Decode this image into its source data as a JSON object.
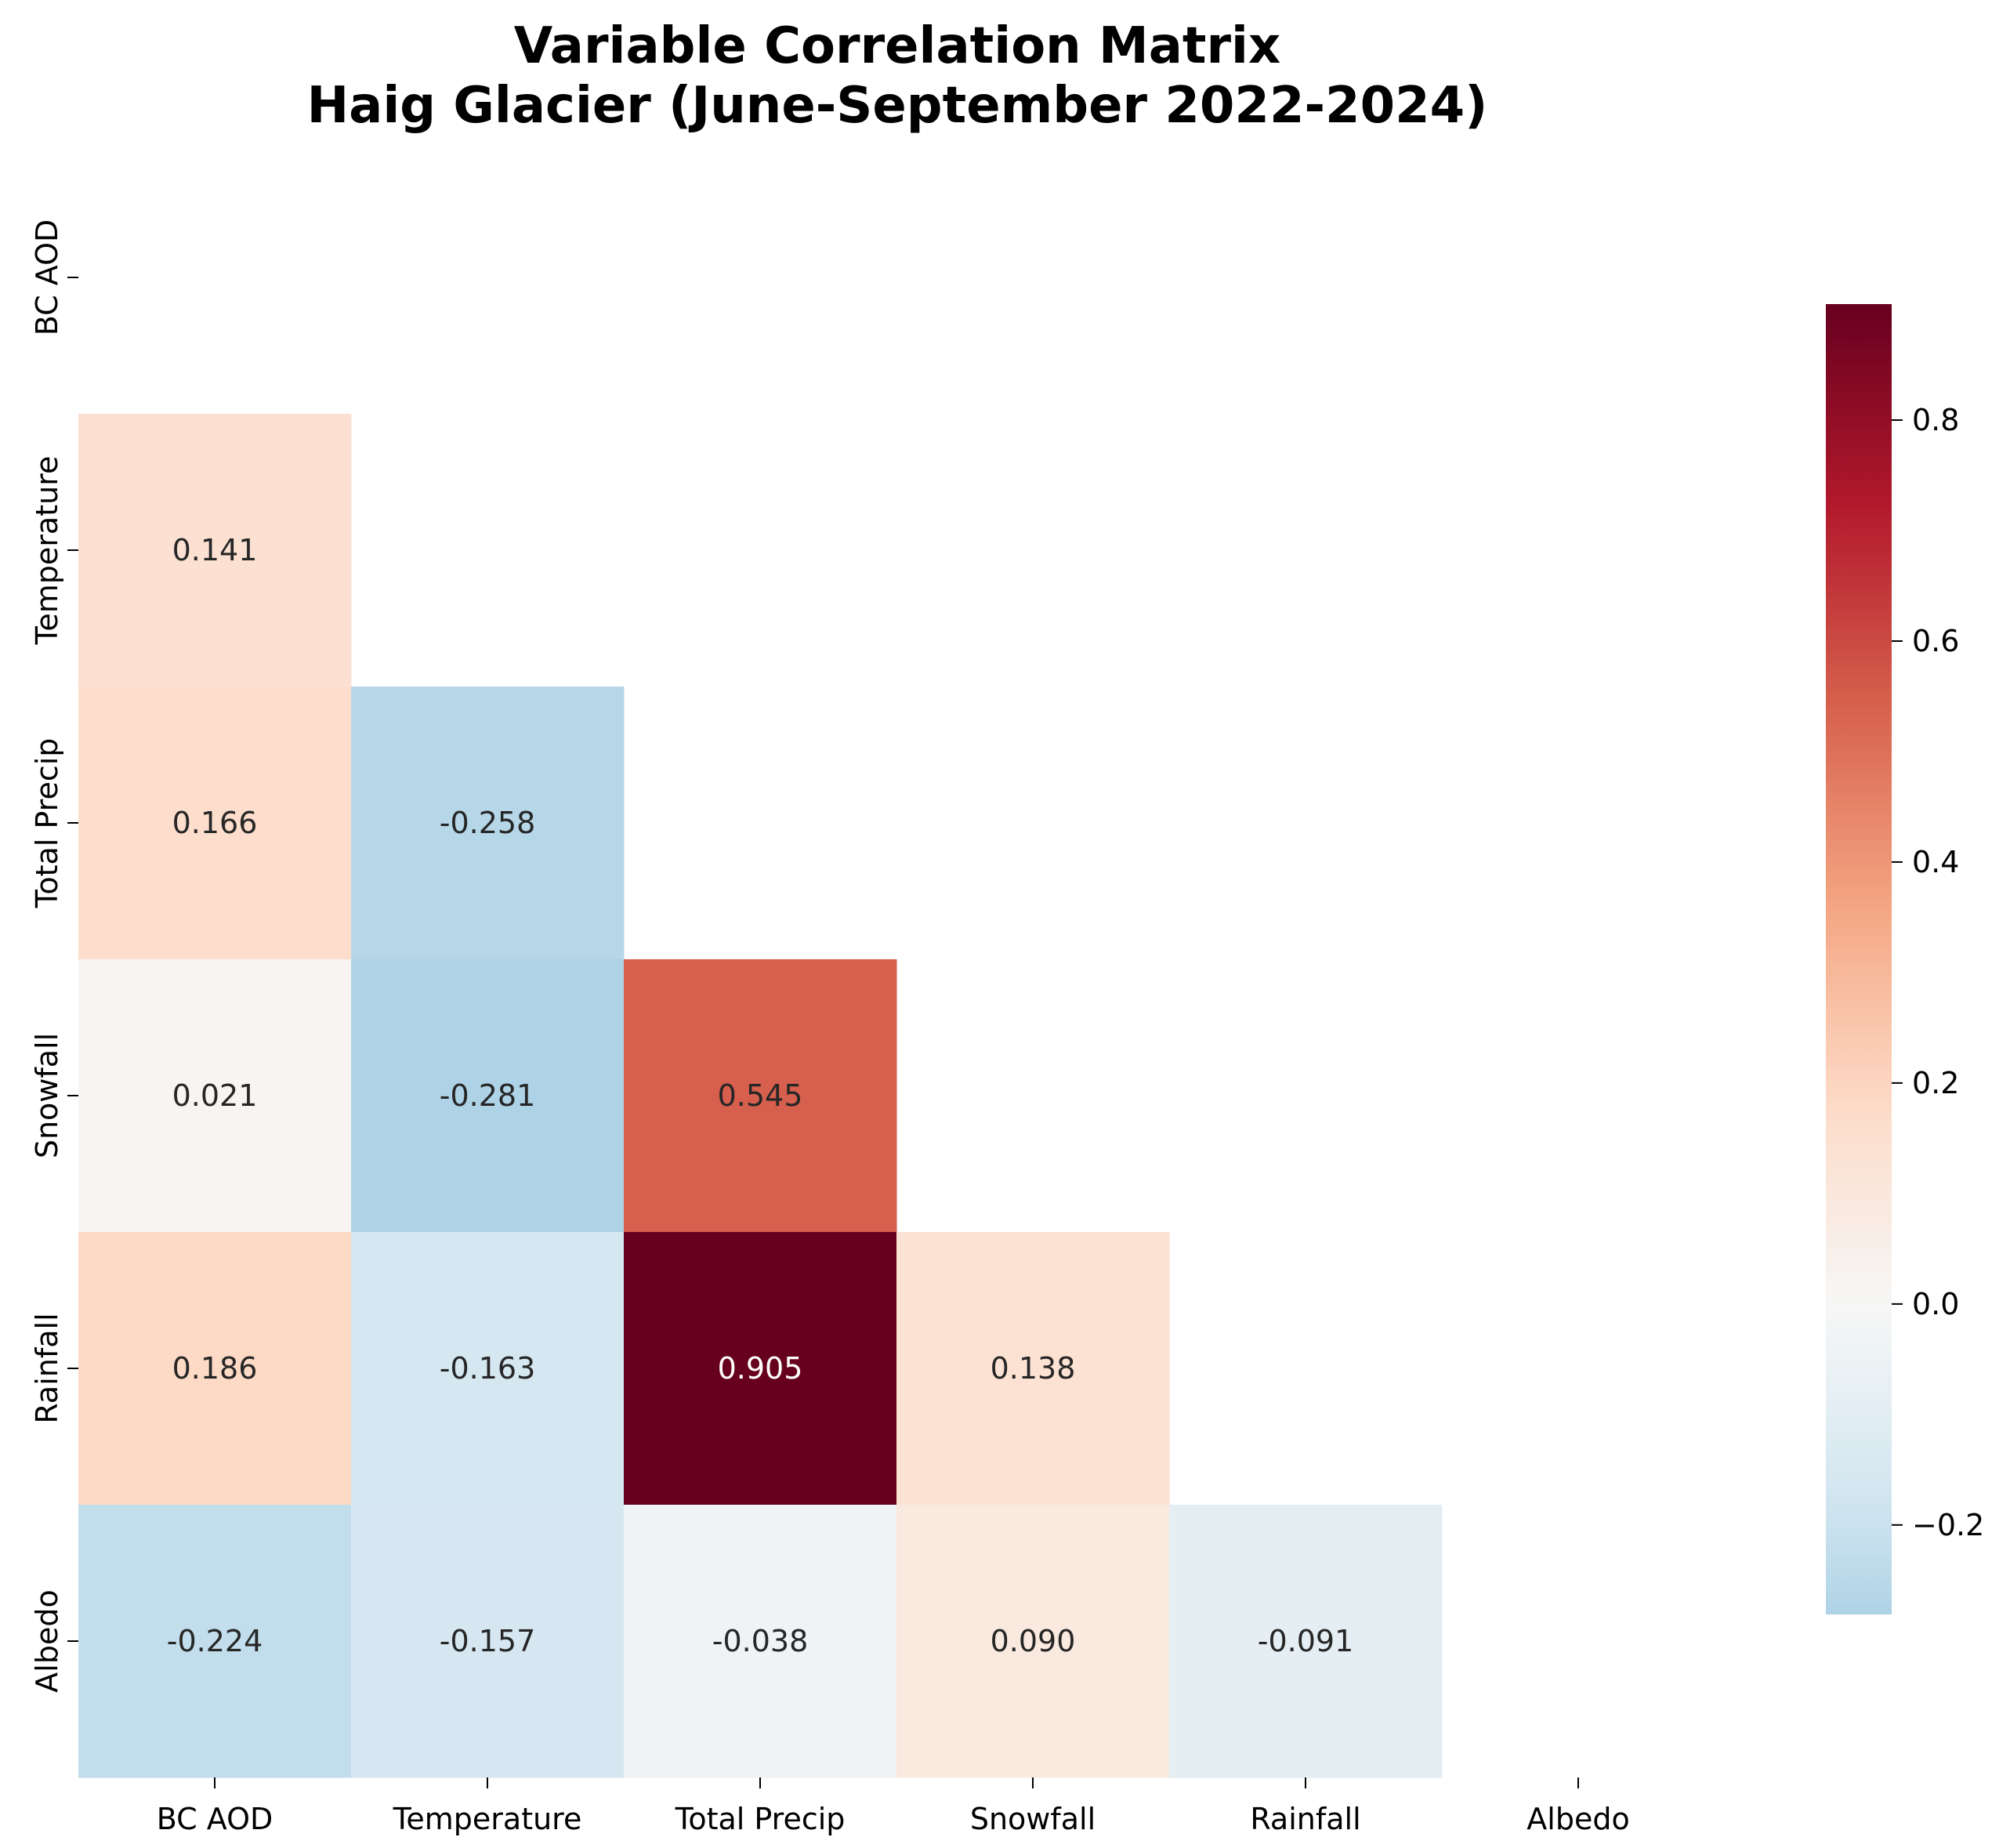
{
  "chart_data": {
    "type": "heatmap",
    "title": [
      "Variable Correlation Matrix",
      "Haig Glacier (June-September 2022-2024)"
    ],
    "x_categories": [
      "BC AOD",
      "Temperature",
      "Total Precip",
      "Snowfall",
      "Rainfall",
      "Albedo"
    ],
    "y_categories": [
      "BC AOD",
      "Temperature",
      "Total Precip",
      "Snowfall",
      "Rainfall",
      "Albedo"
    ],
    "mask": "upper-triangle-including-diagonal",
    "values": [
      [
        null,
        null,
        null,
        null,
        null,
        null
      ],
      [
        0.141,
        null,
        null,
        null,
        null,
        null
      ],
      [
        0.166,
        -0.258,
        null,
        null,
        null,
        null
      ],
      [
        0.021,
        -0.281,
        0.545,
        null,
        null,
        null
      ],
      [
        0.186,
        -0.163,
        0.905,
        0.138,
        null,
        null
      ],
      [
        -0.224,
        -0.157,
        -0.038,
        0.09,
        -0.091,
        null
      ]
    ],
    "cell_labels": [
      [
        null,
        null,
        null,
        null,
        null,
        null
      ],
      [
        "0.141",
        null,
        null,
        null,
        null,
        null
      ],
      [
        "0.166",
        "-0.258",
        null,
        null,
        null,
        null
      ],
      [
        "0.021",
        "-0.281",
        "0.545",
        null,
        null,
        null
      ],
      [
        "0.186",
        "-0.163",
        "0.905",
        "0.138",
        null,
        null
      ],
      [
        "-0.224",
        "-0.157",
        "-0.038",
        "0.090",
        "-0.091",
        null
      ]
    ],
    "colormap": "RdBu_r",
    "center": 0.0,
    "colorbar": {
      "vmin": -0.281,
      "vmax": 0.905,
      "ticks": [
        -0.2,
        0.0,
        0.2,
        0.4,
        0.6,
        0.8
      ],
      "tick_labels": [
        "−0.2",
        "0.0",
        "0.2",
        "0.4",
        "0.6",
        "0.8"
      ],
      "position": "right"
    }
  }
}
